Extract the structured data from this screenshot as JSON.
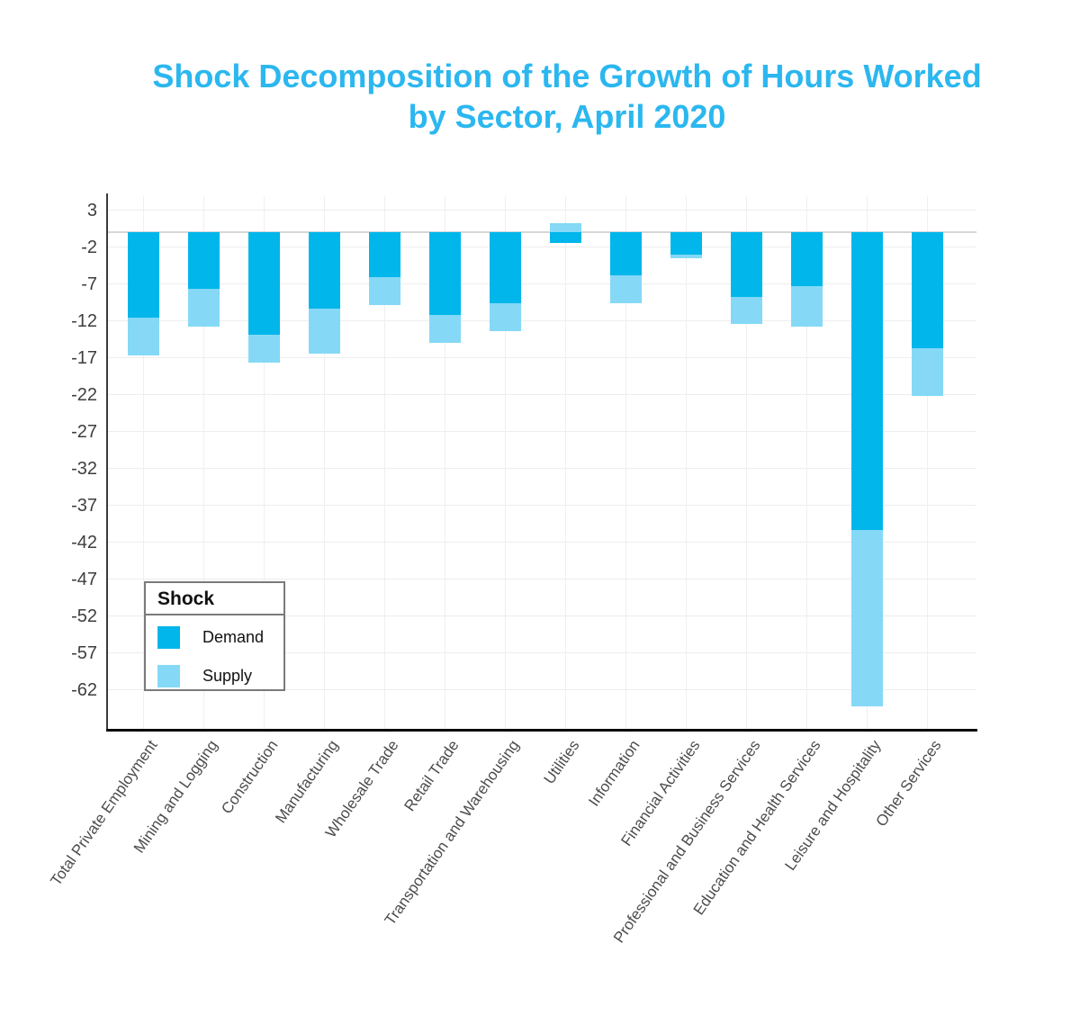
{
  "title": {
    "line1": "Shock Decomposition of the Growth of Hours Worked",
    "line2": "by Sector, April 2020",
    "color": "#2bb7ef"
  },
  "legend": {
    "title": "Shock",
    "items": [
      {
        "label": "Demand",
        "color": "#00b6ea"
      },
      {
        "label": "Supply",
        "color": "#85d9f6"
      }
    ]
  },
  "chart_data": {
    "type": "bar",
    "stacked": true,
    "orientation": "vertical",
    "title": "Shock Decomposition of the Growth of Hours Worked by Sector, April 2020",
    "xlabel": "",
    "ylabel": "",
    "categories": [
      "Total Private Employment",
      "Mining and Logging",
      "Construction",
      "Manufacturing",
      "Wholesale Trade",
      "Retail Trade",
      "Transportation and Warehousing",
      "Utilities",
      "Information",
      "Financial Activities",
      "Professional and Business Services",
      "Education and Health Services",
      "Leisure and Hospitality",
      "Other Services"
    ],
    "series": [
      {
        "name": "Demand",
        "color": "#00b6ea",
        "values": [
          -11.6,
          -7.7,
          -13.9,
          -10.3,
          -6.1,
          -11.2,
          -9.6,
          -1.5,
          -5.8,
          -3.0,
          -8.7,
          -7.3,
          -40.4,
          -15.7
        ]
      },
      {
        "name": "Supply",
        "color": "#85d9f6",
        "values": [
          -5.1,
          -5.1,
          -3.8,
          -6.2,
          -3.7,
          -3.8,
          -3.8,
          1.2,
          -3.8,
          -0.5,
          -3.7,
          -5.5,
          -23.8,
          -6.5
        ]
      }
    ],
    "yticks": [
      3,
      -2,
      -7,
      -12,
      -17,
      -22,
      -27,
      -32,
      -37,
      -42,
      -47,
      -52,
      -57,
      -62
    ],
    "ylim": [
      4.9,
      -67.3
    ],
    "grid": true,
    "legend_position": "inside-bottom-left",
    "legend_title": "Shock"
  }
}
